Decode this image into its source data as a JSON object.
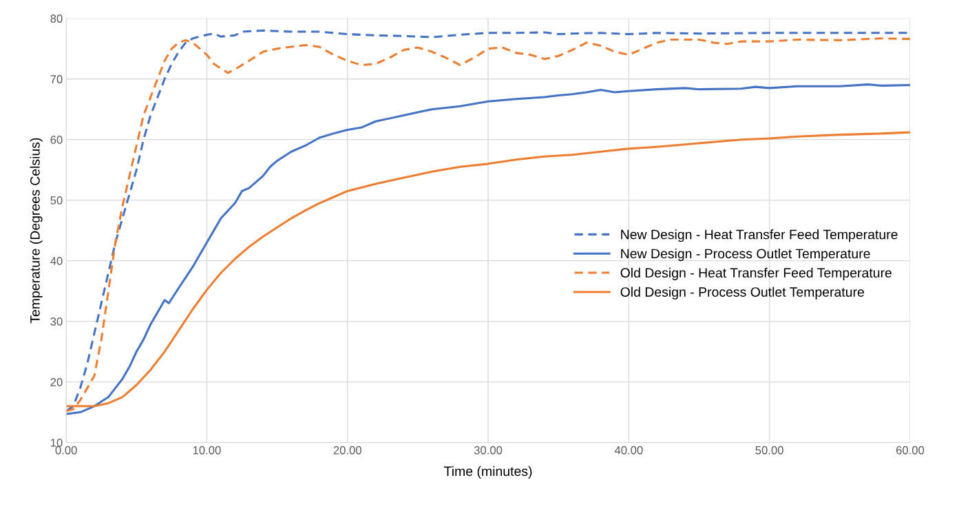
{
  "chart_data": {
    "type": "line",
    "xlabel": "Time (minutes)",
    "ylabel": "Temperature (Degrees Celsius)",
    "xlim": [
      0,
      60
    ],
    "xticks": [
      {
        "value": 0,
        "label": "0.00"
      },
      {
        "value": 10,
        "label": "10.00"
      },
      {
        "value": 20,
        "label": "20.00"
      },
      {
        "value": 30,
        "label": "30.00"
      },
      {
        "value": 40,
        "label": "40.00"
      },
      {
        "value": 50,
        "label": "50.00"
      },
      {
        "value": 60,
        "label": "60.00"
      }
    ],
    "ylim": [
      10,
      80
    ],
    "yticks": [
      10,
      20,
      30,
      40,
      50,
      60,
      70,
      80
    ],
    "grid": true,
    "legend": "right",
    "marker": "none",
    "series": [
      {
        "name": "New Design - Heat Transfer Feed Temperature",
        "color": "#4472c4",
        "line_style": "dashed",
        "x": [
          0,
          0.5,
          1,
          1.5,
          2,
          2.5,
          3,
          3.5,
          4,
          4.5,
          5,
          5.5,
          6,
          6.5,
          7,
          7.5,
          8,
          8.5,
          9,
          10,
          10.5,
          11,
          12,
          12.5,
          14,
          16,
          18,
          20,
          22,
          24,
          26,
          28,
          30,
          32,
          34,
          35,
          36,
          38,
          40,
          42,
          45,
          50,
          55,
          60
        ],
        "values": [
          15.2,
          16,
          19,
          23,
          28,
          33,
          38,
          43,
          47,
          51,
          55,
          60,
          64,
          67,
          70,
          72.5,
          74.5,
          76,
          76.7,
          77.3,
          77.5,
          77,
          77.2,
          77.8,
          78,
          77.8,
          77.8,
          77.4,
          77.2,
          77.1,
          76.9,
          77.3,
          77.6,
          77.6,
          77.7,
          77.4,
          77.5,
          77.6,
          77.4,
          77.6,
          77.5,
          77.6,
          77.6,
          77.6
        ]
      },
      {
        "name": "New Design - Process Outlet Temperature",
        "color": "#4472c4",
        "line_style": "solid",
        "x": [
          0,
          1,
          2,
          3,
          3.5,
          4,
          4.5,
          5,
          5.5,
          6,
          6.5,
          7,
          7.3,
          8,
          9,
          9.5,
          10,
          10.5,
          11,
          12,
          12.5,
          13,
          14,
          14.5,
          15,
          16,
          17,
          18,
          19,
          20,
          21,
          22,
          23,
          24,
          25,
          26,
          28,
          30,
          32,
          34,
          35,
          36,
          37,
          38,
          39,
          40,
          42,
          44,
          45,
          48,
          49,
          50,
          52,
          55,
          57,
          58,
          60
        ],
        "values": [
          14.7,
          15,
          16,
          17.5,
          19,
          20.5,
          22.5,
          25,
          27,
          29.5,
          31.5,
          33.5,
          33,
          35.5,
          39,
          41,
          43,
          45,
          47,
          49.5,
          51.5,
          52,
          54,
          55.5,
          56.5,
          58,
          59,
          60.3,
          61,
          61.6,
          62,
          63,
          63.5,
          64,
          64.5,
          65,
          65.5,
          66.3,
          66.7,
          67,
          67.3,
          67.5,
          67.8,
          68.2,
          67.8,
          68,
          68.3,
          68.5,
          68.3,
          68.4,
          68.7,
          68.5,
          68.8,
          68.8,
          69.1,
          68.9,
          69
        ]
      },
      {
        "name": "Old Design - Heat Transfer Feed Temperature",
        "color": "#ed7d31",
        "line_style": "dashed",
        "x": [
          0,
          0.5,
          1,
          1.5,
          2,
          2.5,
          3,
          3.5,
          4,
          4.5,
          5,
          5.5,
          6,
          6.5,
          7,
          7.5,
          8,
          8.5,
          9,
          9.5,
          10,
          10.5,
          11.5,
          12,
          13,
          14,
          15,
          16,
          17,
          18,
          19,
          20,
          21,
          22,
          23,
          24,
          25,
          26,
          27,
          28,
          29,
          30,
          31,
          32,
          33,
          34,
          35,
          36,
          37,
          38,
          39,
          40,
          41,
          42,
          43,
          45,
          46,
          47,
          48,
          50,
          52,
          55,
          58,
          60
        ],
        "values": [
          15.2,
          15.5,
          17,
          19,
          21,
          27,
          35,
          43,
          49,
          54,
          59,
          64,
          67,
          70,
          73,
          75,
          76,
          76.4,
          76,
          75,
          74,
          72.5,
          71,
          71.6,
          73,
          74.5,
          75,
          75.3,
          75.6,
          75.3,
          74,
          73,
          72.3,
          72.5,
          73.5,
          74.8,
          75.2,
          74.5,
          73.5,
          72.3,
          73.5,
          75,
          75.2,
          74.3,
          74,
          73.3,
          73.8,
          74.8,
          76,
          75.5,
          74.5,
          74,
          75,
          76,
          76.5,
          76.5,
          76,
          75.8,
          76.2,
          76.2,
          76.5,
          76.4,
          76.7,
          76.6
        ]
      },
      {
        "name": "Old Design - Process Outlet Temperature",
        "color": "#ed7d31",
        "line_style": "solid",
        "x": [
          0,
          1,
          2,
          3,
          4,
          5,
          6,
          7,
          8,
          9,
          10,
          11,
          12,
          13,
          14,
          15,
          16,
          17,
          18,
          19,
          20,
          22,
          24,
          26,
          28,
          30,
          32,
          34,
          36,
          38,
          40,
          42,
          44,
          46,
          48,
          50,
          52,
          55,
          58,
          60
        ],
        "values": [
          16,
          16,
          16,
          16.5,
          17.5,
          19.5,
          22,
          25,
          28.5,
          32,
          35.2,
          38,
          40.3,
          42.3,
          44,
          45.5,
          47,
          48.3,
          49.5,
          50.5,
          51.5,
          52.7,
          53.7,
          54.7,
          55.5,
          56,
          56.7,
          57.2,
          57.5,
          58,
          58.5,
          58.8,
          59.2,
          59.6,
          60,
          60.2,
          60.5,
          60.8,
          61,
          61.2
        ]
      }
    ]
  }
}
